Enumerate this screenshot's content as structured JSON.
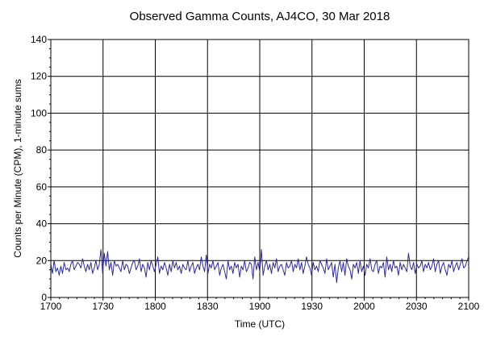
{
  "chart_data": {
    "type": "line",
    "title": "Observed Gamma Counts, AJ4CO, 30 Mar 2018",
    "xlabel": "Time (UTC)",
    "ylabel": "Counts per Minute (CPM), 1-minute sums",
    "x_ticks": [
      "1700",
      "1730",
      "1800",
      "1830",
      "1900",
      "1930",
      "2000",
      "2030",
      "2100"
    ],
    "y_ticks": [
      0,
      20,
      40,
      60,
      80,
      100,
      120,
      140
    ],
    "xlim_minutes": [
      0,
      240
    ],
    "ylim": [
      0,
      140
    ],
    "grid": true,
    "colors": {
      "series": "#2b2b8f",
      "grid": "#000000",
      "axes": "#000000"
    },
    "series": [
      {
        "values": [
          18,
          13,
          20,
          14,
          16,
          12,
          17,
          13,
          19,
          15,
          16,
          14,
          18,
          20,
          15,
          17,
          19,
          18,
          16,
          21,
          17,
          14,
          18,
          15,
          19,
          13,
          16,
          20,
          15,
          18,
          26,
          13,
          24,
          17,
          25,
          15,
          19,
          12,
          20,
          17,
          18,
          16,
          14,
          20,
          15,
          18,
          17,
          13,
          16,
          19,
          20,
          15,
          17,
          21,
          14,
          18,
          16,
          11,
          19,
          15,
          20,
          17,
          14,
          18,
          22,
          13,
          17,
          15,
          19,
          16,
          12,
          18,
          14,
          20,
          16,
          19,
          15,
          17,
          13,
          18,
          16,
          15,
          20,
          14,
          17,
          19,
          13,
          16,
          18,
          15,
          22,
          17,
          14,
          23,
          13,
          18,
          16,
          20,
          15,
          17,
          19,
          12,
          16,
          18,
          14,
          10,
          20,
          15,
          17,
          13,
          19,
          16,
          18,
          11,
          17,
          15,
          20,
          14,
          16,
          19,
          18,
          10,
          22,
          15,
          19,
          14,
          26,
          12,
          17,
          20,
          15,
          18,
          13,
          19,
          16,
          21,
          14,
          17,
          18,
          15,
          12,
          19,
          16,
          17,
          20,
          14,
          18,
          16,
          21,
          15,
          19,
          13,
          17,
          22,
          18,
          16,
          12,
          19,
          15,
          17,
          14,
          20,
          18,
          16,
          13,
          21,
          15,
          17,
          19,
          11,
          18,
          8,
          16,
          20,
          14,
          19,
          12,
          21,
          17,
          15,
          10,
          18,
          16,
          19,
          13,
          20,
          14,
          17,
          12,
          18,
          16,
          21,
          15,
          14,
          18,
          20,
          13,
          17,
          16,
          19,
          11,
          22,
          15,
          18,
          14,
          20,
          16,
          17,
          12,
          19,
          15,
          18,
          16,
          14,
          24,
          17,
          15,
          19,
          13,
          18,
          16,
          17,
          20,
          14,
          18,
          16,
          19,
          15,
          17,
          21,
          14,
          18,
          20,
          13,
          17,
          19,
          15,
          12,
          18,
          16,
          20,
          14,
          17,
          19,
          15,
          18,
          21,
          16,
          17,
          20,
          22
        ]
      }
    ]
  }
}
